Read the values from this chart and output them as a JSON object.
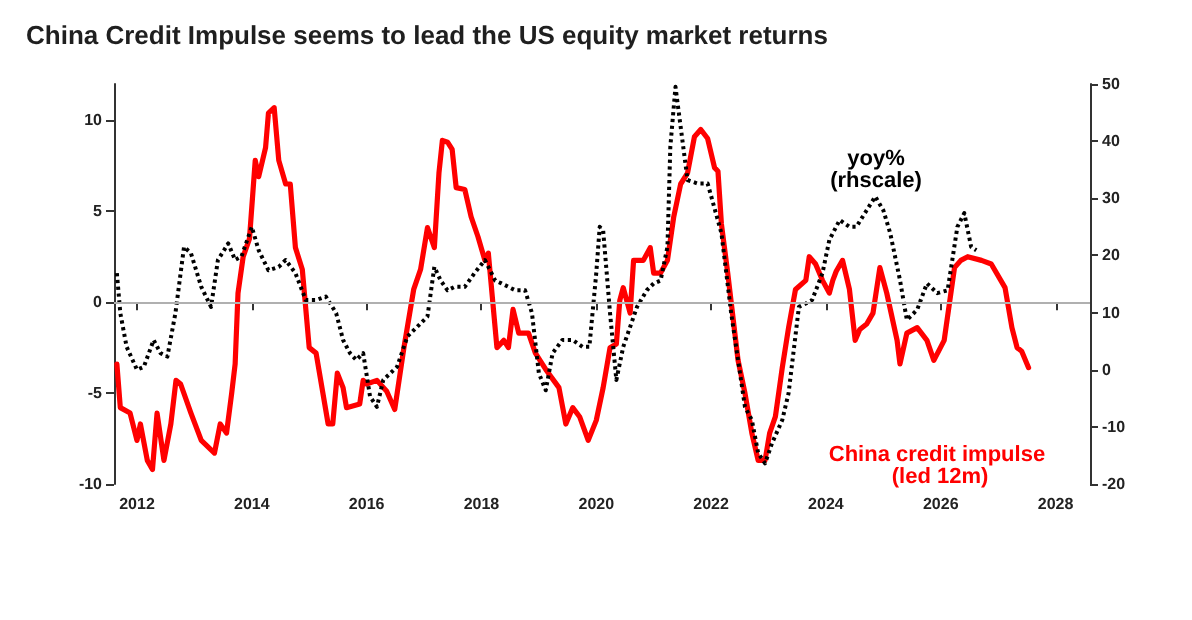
{
  "chart_data": {
    "type": "line",
    "title": "China Credit Impulse seems to lead the US equity market returns",
    "xlim": [
      2011.6,
      2028.6
    ],
    "xticks": [
      2012,
      2014,
      2016,
      2018,
      2020,
      2022,
      2024,
      2026,
      2028
    ],
    "ylim": [
      -10,
      12
    ],
    "yticks": [
      -10,
      -5,
      0,
      5,
      10
    ],
    "y2lim": [
      -20,
      50
    ],
    "y2ticks": [
      -20,
      -10,
      0,
      10,
      20,
      30,
      40,
      50
    ],
    "grid": false,
    "legend": false,
    "marker": "none",
    "ref_lines": [
      {
        "axis": "y",
        "value": 0,
        "color": "#b0b0b0"
      }
    ],
    "series": [
      {
        "name": "China credit impulse  (led 12m)",
        "color": "#ff0000",
        "line_style": "solid",
        "x": [
          2011.65,
          2011.71,
          2011.88,
          2012.0,
          2012.06,
          2012.18,
          2012.27,
          2012.35,
          2012.47,
          2012.59,
          2012.68,
          2012.76,
          2012.94,
          2013.12,
          2013.35,
          2013.45,
          2013.56,
          2013.65,
          2013.71,
          2013.76,
          2013.85,
          2013.96,
          2014.06,
          2014.12,
          2014.24,
          2014.29,
          2014.39,
          2014.47,
          2014.59,
          2014.67,
          2014.76,
          2014.88,
          2015.0,
          2015.12,
          2015.33,
          2015.41,
          2015.49,
          2015.59,
          2015.65,
          2015.88,
          2015.94,
          2016.0,
          2016.18,
          2016.35,
          2016.49,
          2016.65,
          2016.82,
          2016.94,
          2017.06,
          2017.18,
          2017.26,
          2017.32,
          2017.41,
          2017.49,
          2017.56,
          2017.71,
          2017.82,
          2017.94,
          2018.06,
          2018.12,
          2018.27,
          2018.39,
          2018.47,
          2018.55,
          2018.65,
          2018.82,
          2018.94,
          2019.12,
          2019.35,
          2019.47,
          2019.59,
          2019.71,
          2019.86,
          2020.0,
          2020.12,
          2020.24,
          2020.35,
          2020.41,
          2020.47,
          2020.59,
          2020.65,
          2020.82,
          2020.94,
          2021.0,
          2021.12,
          2021.24,
          2021.35,
          2021.47,
          2021.59,
          2021.71,
          2021.82,
          2021.94,
          2022.06,
          2022.12,
          2022.18,
          2022.29,
          2022.47,
          2022.59,
          2022.71,
          2022.82,
          2022.94,
          2023.02,
          2023.12,
          2023.24,
          2023.35,
          2023.47,
          2023.65,
          2023.71,
          2023.82,
          2023.94,
          2024.06,
          2024.12,
          2024.18,
          2024.29,
          2024.41,
          2024.51,
          2024.59,
          2024.71,
          2024.82,
          2024.94,
          2025.06,
          2025.24,
          2025.29,
          2025.41,
          2025.59,
          2025.76,
          2025.88,
          2026.06,
          2026.24,
          2026.35,
          2026.47,
          2026.71,
          2026.88,
          2027.12,
          2027.24,
          2027.33,
          2027.41,
          2027.53
        ],
        "values": [
          -3.4,
          -5.8,
          -6.1,
          -7.6,
          -6.7,
          -8.7,
          -9.2,
          -6.1,
          -8.7,
          -6.7,
          -4.3,
          -4.5,
          -6.1,
          -7.6,
          -8.3,
          -6.7,
          -7.2,
          -5.0,
          -3.4,
          0.5,
          2.5,
          3.5,
          7.8,
          6.9,
          8.5,
          10.4,
          10.7,
          7.8,
          6.5,
          6.5,
          3.0,
          1.8,
          -2.5,
          -2.8,
          -6.7,
          -6.7,
          -3.9,
          -4.7,
          -5.8,
          -5.6,
          -4.3,
          -4.5,
          -4.3,
          -4.9,
          -5.9,
          -2.5,
          0.7,
          1.8,
          4.1,
          3.0,
          7.1,
          8.9,
          8.8,
          8.4,
          6.3,
          6.2,
          4.7,
          3.6,
          2.3,
          2.7,
          -2.5,
          -2.1,
          -2.5,
          -0.4,
          -1.7,
          -1.7,
          -2.8,
          -3.7,
          -4.7,
          -6.7,
          -5.8,
          -6.3,
          -7.6,
          -6.5,
          -4.7,
          -2.5,
          -2.3,
          0.1,
          0.8,
          -0.6,
          2.3,
          2.3,
          3.0,
          1.6,
          1.6,
          2.3,
          4.7,
          6.5,
          7.1,
          9.1,
          9.5,
          9.0,
          7.4,
          7.2,
          4.3,
          1.6,
          -3.2,
          -5.0,
          -7.2,
          -8.7,
          -8.7,
          -7.2,
          -6.3,
          -3.6,
          -1.4,
          0.7,
          1.2,
          2.5,
          2.1,
          1.2,
          0.5,
          1.2,
          1.7,
          2.3,
          0.7,
          -2.1,
          -1.5,
          -1.2,
          -0.6,
          1.9,
          0.5,
          -2.1,
          -3.4,
          -1.7,
          -1.4,
          -2.1,
          -3.2,
          -2.1,
          1.9,
          2.3,
          2.5,
          2.3,
          2.1,
          0.8,
          -1.4,
          -2.5,
          -2.7,
          -3.6
        ]
      },
      {
        "name": "yoy% (rhscale)",
        "color": "#000000",
        "line_style": "dotted",
        "axis": "y2",
        "x": [
          2011.65,
          2011.71,
          2011.82,
          2012.0,
          2012.12,
          2012.29,
          2012.41,
          2012.53,
          2012.67,
          2012.82,
          2012.94,
          2013.12,
          2013.29,
          2013.41,
          2013.59,
          2013.71,
          2013.82,
          2014.0,
          2014.12,
          2014.29,
          2014.47,
          2014.59,
          2014.76,
          2014.94,
          2015.12,
          2015.29,
          2015.47,
          2015.59,
          2015.71,
          2015.82,
          2015.94,
          2016.06,
          2016.18,
          2016.29,
          2016.53,
          2016.71,
          2016.88,
          2017.06,
          2017.18,
          2017.29,
          2017.41,
          2017.53,
          2017.71,
          2017.88,
          2018.06,
          2018.24,
          2018.35,
          2018.59,
          2018.76,
          2018.88,
          2019.0,
          2019.12,
          2019.24,
          2019.41,
          2019.59,
          2019.76,
          2019.88,
          2020.0,
          2020.06,
          2020.12,
          2020.24,
          2020.35,
          2020.47,
          2020.71,
          2020.88,
          2021.0,
          2021.12,
          2021.24,
          2021.29,
          2021.38,
          2021.47,
          2021.59,
          2021.76,
          2021.94,
          2022.18,
          2022.35,
          2022.59,
          2022.71,
          2022.82,
          2022.94,
          2023.06,
          2023.24,
          2023.35,
          2023.53,
          2023.65,
          2023.76,
          2023.94,
          2024.06,
          2024.24,
          2024.41,
          2024.53,
          2024.71,
          2024.86,
          2025.0,
          2025.12,
          2025.29,
          2025.41,
          2025.59,
          2025.76,
          2025.94,
          2026.12,
          2026.29,
          2026.41,
          2026.53,
          2026.62
        ],
        "values": [
          16.9,
          9.9,
          4.0,
          0.0,
          0.5,
          5.2,
          2.9,
          2.3,
          9.9,
          21.5,
          20.4,
          14.5,
          11.0,
          19.2,
          22.1,
          19.2,
          19.8,
          25.0,
          20.9,
          17.4,
          18.0,
          19.2,
          16.9,
          12.2,
          12.2,
          12.8,
          9.9,
          5.2,
          2.9,
          1.7,
          2.9,
          -4.7,
          -6.5,
          -1.8,
          0.5,
          5.8,
          7.5,
          9.3,
          18.0,
          15.6,
          13.9,
          14.5,
          14.5,
          16.9,
          19.2,
          15.6,
          15.1,
          13.9,
          13.9,
          9.9,
          -0.6,
          -3.6,
          2.9,
          5.2,
          5.2,
          4.0,
          4.0,
          16.9,
          25.0,
          24.4,
          9.9,
          -1.8,
          4.0,
          11.0,
          13.9,
          15.1,
          15.6,
          21.5,
          39.0,
          49.5,
          42.5,
          33.2,
          32.6,
          32.6,
          23.9,
          9.9,
          -6.5,
          -8.8,
          -14.6,
          -16.4,
          -12.9,
          -8.8,
          -4.1,
          11.0,
          11.6,
          12.2,
          16.9,
          22.7,
          26.2,
          25.0,
          25.0,
          27.9,
          30.3,
          27.9,
          23.9,
          15.7,
          8.7,
          10.5,
          15.1,
          13.4,
          13.9,
          25.0,
          27.4,
          21.5,
          20.9
        ]
      }
    ]
  }
}
